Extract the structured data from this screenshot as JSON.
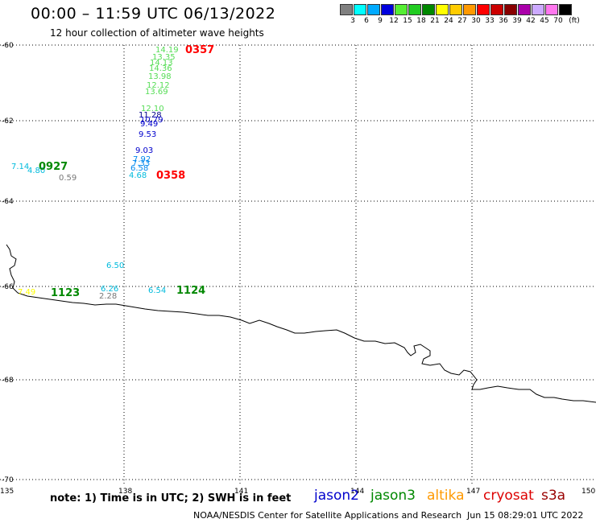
{
  "header": {
    "title": "00:00 – 11:59 UTC 06/13/2022",
    "subtitle": "12 hour collection of altimeter wave heights"
  },
  "legend": {
    "colors": [
      "#808080",
      "#00ffff",
      "#00aaff",
      "#0000dd",
      "#55ee33",
      "#22cc22",
      "#008800",
      "#ffff00",
      "#ffcc00",
      "#ff9900",
      "#ff0000",
      "#cc0000",
      "#880000",
      "#aa00aa",
      "#ccaaff",
      "#ff77ee",
      "#000000"
    ],
    "labels": [
      "3",
      "6",
      "9",
      "12",
      "15",
      "18",
      "21",
      "24",
      "27",
      "30",
      "33",
      "36",
      "39",
      "42",
      "45",
      "70",
      "(ft)"
    ]
  },
  "map": {
    "lat_labels": [
      "-60",
      "-62",
      "-64",
      "-66",
      "-68",
      "-70"
    ],
    "lon_labels": [
      "135",
      "138",
      "141",
      "144",
      "147",
      "150"
    ],
    "measurements": [
      {
        "text": "14.19",
        "color": "#55dd55"
      },
      {
        "text": "13.35",
        "color": "#55dd55"
      },
      {
        "text": "14.13",
        "color": "#55dd55"
      },
      {
        "text": "14.36",
        "color": "#55dd55"
      },
      {
        "text": "13.98",
        "color": "#55dd55"
      },
      {
        "text": "12.12",
        "color": "#55dd55"
      },
      {
        "text": "13.69",
        "color": "#55dd55"
      },
      {
        "text": "12.10",
        "color": "#55dd55"
      },
      {
        "text": "11.28",
        "color": "#000088"
      },
      {
        "text": "10.79",
        "color": "#0000cc"
      },
      {
        "text": "9.49",
        "color": "#0000cc"
      },
      {
        "text": "9.53",
        "color": "#0000cc"
      },
      {
        "text": "9.03",
        "color": "#0000cc"
      },
      {
        "text": "7.92",
        "color": "#0088ee"
      },
      {
        "text": "7.33",
        "color": "#0088ee"
      },
      {
        "text": "6.58",
        "color": "#0088ee"
      },
      {
        "text": "4.68",
        "color": "#00bbdd"
      },
      {
        "text": "7.14",
        "color": "#00bbdd"
      },
      {
        "text": "4.80",
        "color": "#00bbdd"
      },
      {
        "text": "0.59",
        "color": "#777777"
      },
      {
        "text": "6.50",
        "color": "#00bbdd"
      },
      {
        "text": "6.26",
        "color": "#00bbdd"
      },
      {
        "text": "2.28",
        "color": "#777777"
      },
      {
        "text": "6.54",
        "color": "#00bbdd"
      },
      {
        "text": "7.49",
        "color": "#ffff00"
      }
    ],
    "pass_times": [
      {
        "text": "0357",
        "color": "#ff0000"
      },
      {
        "text": "0358",
        "color": "#ff0000"
      },
      {
        "text": "0927",
        "color": "#008800"
      },
      {
        "text": "1123",
        "color": "#008800"
      },
      {
        "text": "1124",
        "color": "#008800"
      }
    ]
  },
  "footer": {
    "note": "note:  1) Time is in UTC;  2) SWH is in feet",
    "satellites": [
      {
        "name": "jason2",
        "color": "#0000cc"
      },
      {
        "name": "jason3",
        "color": "#008800"
      },
      {
        "name": "altika",
        "color": "#ff9900"
      },
      {
        "name": "cryosat",
        "color": "#dd0000"
      },
      {
        "name": "s3a",
        "color": "#990000"
      }
    ],
    "credit": "NOAA/NESDIS Center for Satellite Applications and Research",
    "timestamp": "Jun 15 08:29:01 UTC 2022"
  }
}
